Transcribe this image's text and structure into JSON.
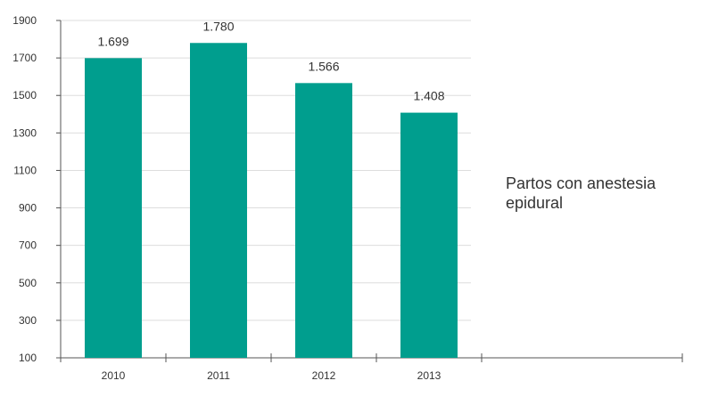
{
  "chart_data": {
    "type": "bar",
    "categories": [
      "2010",
      "2011",
      "2012",
      "2013"
    ],
    "series": [
      {
        "name": "Partos con anestesia epidural",
        "values": [
          1699,
          1780,
          1566,
          1408
        ],
        "value_labels": [
          "1.699",
          "1.780",
          "1.566",
          "1.408"
        ]
      }
    ],
    "ylim": [
      100,
      1900
    ],
    "yticks": [
      100,
      300,
      500,
      700,
      900,
      1100,
      1300,
      1500,
      1700,
      1900
    ],
    "grid": true,
    "legend": "right",
    "colors": {
      "bar": "#009e8e",
      "grid": "#dddddd",
      "axis": "#555555",
      "text": "#333333"
    }
  }
}
